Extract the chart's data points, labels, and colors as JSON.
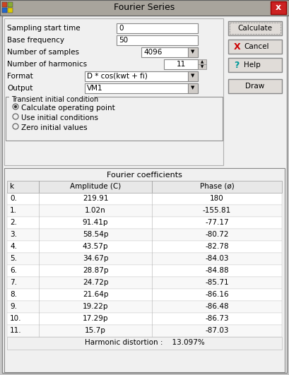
{
  "title": "Fourier Series",
  "fields": [
    {
      "label": "Sampling start time",
      "value": "0",
      "type": "text"
    },
    {
      "label": "Base frequency",
      "value": "50",
      "type": "text"
    },
    {
      "label": "Number of samples",
      "value": "4096",
      "type": "dropdown"
    },
    {
      "label": "Number of harmonics",
      "value": "11",
      "type": "spinner"
    },
    {
      "label": "Format",
      "value": "D * cos(kwt + fi)",
      "type": "dropdown"
    },
    {
      "label": "Output",
      "value": "VM1",
      "type": "dropdown"
    }
  ],
  "radio_group_label": "Transient initial condition",
  "radio_options": [
    {
      "label": "Calculate operating point",
      "selected": true
    },
    {
      "label": "Use initial conditions",
      "selected": false
    },
    {
      "label": "Zero initial values",
      "selected": false
    }
  ],
  "buttons": [
    {
      "label": "Calculate",
      "icon": null
    },
    {
      "label": "Cancel",
      "icon": "X"
    },
    {
      "label": "Help",
      "icon": "?"
    },
    {
      "label": "Draw",
      "icon": null
    }
  ],
  "table_title": "Fourier coefficients",
  "table_headers": [
    "k",
    "Amplitude (C)",
    "Phase (ø)"
  ],
  "table_rows": [
    [
      "0.",
      "219.91",
      "180"
    ],
    [
      "1.",
      "1.02n",
      "-155.81"
    ],
    [
      "2.",
      "91.41p",
      "-77.17"
    ],
    [
      "3.",
      "58.54p",
      "-80.72"
    ],
    [
      "4.",
      "43.57p",
      "-82.78"
    ],
    [
      "5.",
      "34.67p",
      "-84.03"
    ],
    [
      "6.",
      "28.87p",
      "-84.88"
    ],
    [
      "7.",
      "24.72p",
      "-85.71"
    ],
    [
      "8.",
      "21.64p",
      "-86.16"
    ],
    [
      "9.",
      "19.22p",
      "-86.48"
    ],
    [
      "10.",
      "17.29p",
      "-86.73"
    ],
    [
      "11.",
      "15.7p",
      "-87.03"
    ]
  ],
  "harmonic_distortion": "Harmonic distortion :    13.097%",
  "window_bg": "#c8c8c8",
  "dialog_bg": "#f0f0f0",
  "title_bar_bg": "#b0aaa0",
  "x_btn_bg": "#cc2222",
  "button_bg": "#e0dcd8",
  "input_bg": "#ffffff",
  "table_line_color": "#a0a0a0",
  "table_bg": "#ffffff"
}
